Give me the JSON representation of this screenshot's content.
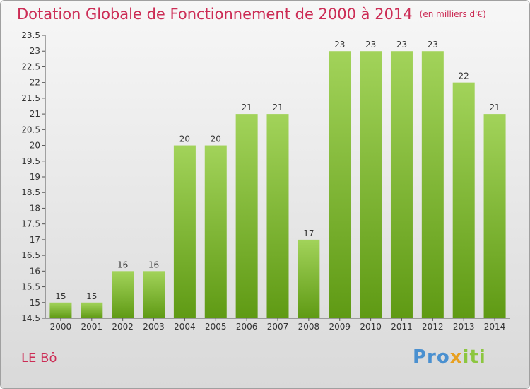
{
  "title": "Dotation Globale de Fonctionnement de 2000 à 2014",
  "subtitle": "(en milliers d'€)",
  "commune": "LE Bô",
  "logo": {
    "parts": [
      "Pro",
      "x",
      "iti"
    ],
    "colors": [
      "#4a90d0",
      "#e8a020",
      "#8cc63f"
    ]
  },
  "colors": {
    "title": "#cc2c55",
    "bar_light": "#a2d35a",
    "bar_dark": "#5f9a14"
  },
  "chart_data": {
    "type": "bar",
    "categories": [
      "2000",
      "2001",
      "2002",
      "2003",
      "2004",
      "2005",
      "2006",
      "2007",
      "2008",
      "2009",
      "2010",
      "2011",
      "2012",
      "2013",
      "2014"
    ],
    "values": [
      15,
      15,
      16,
      16,
      20,
      20,
      21,
      21,
      17,
      23,
      23,
      23,
      23,
      22,
      21
    ],
    "title": "Dotation Globale de Fonctionnement de 2000 à 2014",
    "ylabel": "",
    "xlabel": "",
    "ylim": [
      14.5,
      23.5
    ],
    "yticks": [
      "14.5",
      "15",
      "15.5",
      "16",
      "16.5",
      "17",
      "17.5",
      "18",
      "18.5",
      "19",
      "19.5",
      "20",
      "20.5",
      "21",
      "21.5",
      "22",
      "22.5",
      "23",
      "23.5"
    ],
    "grid": false,
    "legend": "none"
  }
}
